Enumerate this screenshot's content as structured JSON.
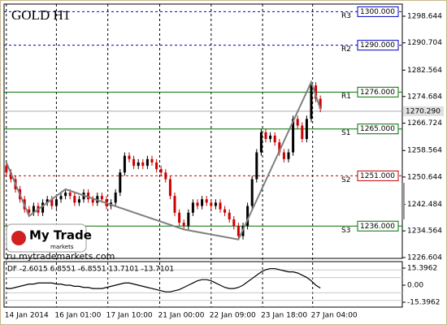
{
  "title": "GOLD H1",
  "watermark": {
    "brand": "My Trade",
    "sub": "markets",
    "url": "ru.mytrademarkets.com"
  },
  "chart_data": [
    {
      "type": "candlestick",
      "ylim": [
        1226.36,
        1302.28
      ],
      "yticks": [
        1298.644,
        1290.704,
        1282.564,
        1274.684,
        1266.724,
        1258.564,
        1250.644,
        1242.484,
        1234.564,
        1226.604
      ],
      "xlim": [
        -0.5,
        87
      ],
      "xticks": [
        {
          "value": 0,
          "label": "14 Jan 2014"
        },
        {
          "value": 11,
          "label": "16 Jan 01:00"
        },
        {
          "value": 22.3,
          "label": "17 Jan 10:00"
        },
        {
          "value": 33.7,
          "label": "21 Jan 00:00"
        },
        {
          "value": 45,
          "label": "22 Jan 09:00"
        },
        {
          "value": 56.3,
          "label": "23 Jan 18:00"
        },
        {
          "value": 67.3,
          "label": "27 Jan 04:00"
        }
      ],
      "levels": [
        {
          "name": "R3",
          "value": 1300,
          "label": "1300.000",
          "color": "#0000c0",
          "style": "dashed"
        },
        {
          "name": "R2",
          "value": 1290,
          "label": "1290.000",
          "color": "#0000c0",
          "style": "dashed"
        },
        {
          "name": "R1",
          "value": 1276,
          "label": "1276.000",
          "color": "#007000",
          "style": "solid"
        },
        {
          "name": "S1",
          "value": 1265,
          "label": "1265.000",
          "color": "#007000",
          "style": "solid"
        },
        {
          "name": "S2",
          "value": 1251,
          "label": "1251.000",
          "color": "#c00000",
          "style": "dashed"
        },
        {
          "name": "S3",
          "value": 1236,
          "label": "1236.000",
          "color": "#007000",
          "style": "solid"
        }
      ],
      "current": {
        "value": 1270.29,
        "label": "1270.290"
      },
      "bull_color": "#000000",
      "bear_color": "#cc0000",
      "open": [
        1254,
        1252,
        1250,
        1247,
        1244,
        1241,
        1240,
        1242,
        1240,
        1243,
        1244,
        1242,
        1244,
        1245,
        1246,
        1245,
        1243,
        1244,
        1246,
        1244,
        1243,
        1245,
        1244,
        1242,
        1243,
        1246,
        1252,
        1257,
        1256,
        1254,
        1255,
        1254,
        1256,
        1255,
        1253,
        1252,
        1250,
        1245,
        1240,
        1237,
        1236,
        1240,
        1243,
        1242,
        1244,
        1243,
        1242,
        1243,
        1241,
        1240,
        1238,
        1236,
        1233,
        1236,
        1242,
        1250,
        1258,
        1264,
        1262,
        1263,
        1261,
        1258,
        1256,
        1258,
        1268,
        1266,
        1262,
        1268,
        1278,
        1274
      ],
      "high": [
        1255,
        1253,
        1251,
        1248,
        1245,
        1242,
        1243,
        1243,
        1244,
        1245,
        1245,
        1245,
        1246,
        1247,
        1247,
        1246,
        1245,
        1247,
        1247,
        1245,
        1246,
        1246,
        1245,
        1244,
        1247,
        1253,
        1258,
        1258,
        1257,
        1256,
        1256,
        1257,
        1257,
        1256,
        1254,
        1253,
        1251,
        1246,
        1241,
        1238,
        1241,
        1244,
        1244,
        1245,
        1245,
        1244,
        1244,
        1244,
        1242,
        1241,
        1239,
        1237,
        1237,
        1243,
        1251,
        1259,
        1265,
        1265,
        1264,
        1264,
        1262,
        1259,
        1259,
        1269,
        1269,
        1267,
        1269,
        1279,
        1279,
        1275
      ],
      "low": [
        1251,
        1249,
        1246,
        1243,
        1240,
        1239,
        1239,
        1239,
        1239,
        1242,
        1241,
        1241,
        1243,
        1244,
        1244,
        1242,
        1242,
        1243,
        1243,
        1242,
        1242,
        1243,
        1241,
        1241,
        1242,
        1245,
        1251,
        1255,
        1253,
        1253,
        1253,
        1253,
        1254,
        1252,
        1251,
        1249,
        1244,
        1239,
        1236,
        1235,
        1235,
        1239,
        1241,
        1241,
        1242,
        1241,
        1241,
        1240,
        1239,
        1237,
        1235,
        1232,
        1232,
        1235,
        1241,
        1249,
        1257,
        1261,
        1261,
        1260,
        1257,
        1255,
        1255,
        1257,
        1265,
        1261,
        1261,
        1267,
        1273,
        1270
      ],
      "close": [
        1252,
        1250,
        1247,
        1244,
        1241,
        1240,
        1242,
        1240,
        1243,
        1244,
        1242,
        1244,
        1245,
        1246,
        1245,
        1243,
        1244,
        1246,
        1244,
        1243,
        1245,
        1244,
        1242,
        1243,
        1246,
        1252,
        1257,
        1256,
        1254,
        1255,
        1254,
        1256,
        1255,
        1253,
        1252,
        1250,
        1245,
        1240,
        1237,
        1236,
        1240,
        1243,
        1242,
        1244,
        1243,
        1242,
        1243,
        1241,
        1240,
        1238,
        1236,
        1233,
        1236,
        1242,
        1250,
        1258,
        1264,
        1262,
        1263,
        1261,
        1258,
        1256,
        1258,
        1268,
        1266,
        1262,
        1268,
        1278,
        1274,
        1271
      ],
      "zigzag": {
        "color": "#808080",
        "x": [
          0,
          5,
          13,
          39,
          51,
          67,
          69
        ],
        "values": [
          1255,
          1239,
          1247,
          1235,
          1232,
          1279,
          1271
        ]
      }
    },
    {
      "type": "line",
      "label": "DF -2.6015 6.8551 -6.8551 13.7101 -13.7101",
      "ylim": [
        -19.79,
        21.26
      ],
      "yticks": [
        15.3962,
        {
          "value": 0,
          "label": "0.00"
        },
        -15.3962
      ],
      "bands": [
        6.8551,
        -6.8551,
        13.7101,
        -13.7101
      ],
      "color": "#000000",
      "values": [
        -3,
        -3,
        -2,
        -1,
        0,
        1,
        1,
        2,
        2,
        2,
        2,
        1,
        1,
        0,
        0,
        -1,
        -1,
        -2,
        -2,
        -3,
        -3,
        -3,
        -2,
        -1,
        0,
        1,
        2,
        2,
        1,
        0,
        -1,
        -2,
        -3,
        -4,
        -5,
        -6,
        -6,
        -5,
        -4,
        -2,
        0,
        2,
        4,
        5,
        5,
        4,
        2,
        0,
        -2,
        -3,
        -3,
        -2,
        0,
        3,
        6,
        9,
        12,
        14,
        15,
        15,
        14,
        13,
        12,
        12,
        11,
        9,
        7,
        4,
        0,
        -2.6015
      ]
    }
  ]
}
